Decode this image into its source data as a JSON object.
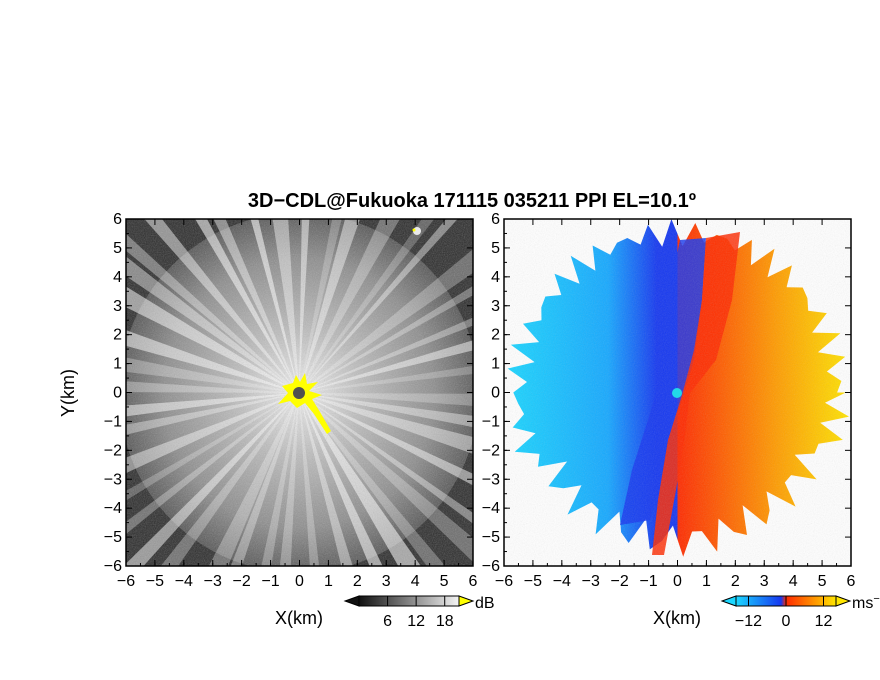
{
  "figure": {
    "title": "3D−CDL@Fukuoka 171115 035211 PPI EL=10.1º"
  },
  "chart_data": [
    {
      "type": "heatmap",
      "name": "reflectivity-ppi",
      "title": "",
      "xlabel": "X(km)",
      "ylabel": "Y(km)",
      "xlim": [
        -6,
        6
      ],
      "ylim": [
        -6,
        6
      ],
      "xticks": [
        "−6",
        "−5",
        "−4",
        "−3",
        "−2",
        "−1",
        "0",
        "1",
        "2",
        "3",
        "4",
        "5",
        "6"
      ],
      "yticks": [
        "−6",
        "−5",
        "−4",
        "−3",
        "−2",
        "−1",
        "0",
        "1",
        "2",
        "3",
        "4",
        "5",
        "6"
      ],
      "colormap": "grayscale",
      "colorbar": {
        "unit": "dB",
        "ticks": [
          6,
          12,
          18
        ],
        "ticklabels": [
          "6",
          "12",
          "18"
        ],
        "range": [
          0,
          21
        ]
      },
      "features": {
        "radar_center": [
          0,
          0
        ],
        "center_marker_color": "#505050",
        "near_center_high_echo_color": "#ffff00",
        "high_echo_tail_end": [
          1.2,
          -1.5
        ],
        "spokes_at_edge_value_db": 17,
        "background_value_db": 5,
        "isolated_echo_location": [
          4.1,
          5.5
        ]
      }
    },
    {
      "type": "heatmap",
      "name": "doppler-velocity-ppi",
      "title": "",
      "xlabel": "X(km)",
      "ylabel": "",
      "xlim": [
        -6,
        6
      ],
      "ylim": [
        -6,
        6
      ],
      "xticks": [
        "−6",
        "−5",
        "−4",
        "−3",
        "−2",
        "−1",
        "0",
        "1",
        "2",
        "3",
        "4",
        "5",
        "6"
      ],
      "yticks": [
        "−6",
        "−5",
        "−4",
        "−3",
        "−2",
        "−1",
        "0",
        "1",
        "2",
        "3",
        "4",
        "5",
        "6"
      ],
      "colormap": "diverging cyan-blue-red-yellow",
      "colorbar": {
        "unit": "ms",
        "unit_superscript": "−1",
        "ticks": [
          -12,
          0,
          12
        ],
        "ticklabels": [
          "−12",
          "0",
          "12"
        ],
        "range": [
          -16,
          16
        ]
      },
      "features": {
        "radar_center": [
          0,
          0
        ],
        "center_marker_color": "#22d7e8",
        "velocity_boundary_angle_deg_from_north": 12,
        "approx_velocity_west_side_ms": -12,
        "approx_velocity_east_side_ms": 12,
        "data_coverage_radius_km": 6
      }
    }
  ],
  "colors": {
    "cyan": "#1ad7ff",
    "blue": "#1638f0",
    "red": "#ff2a00",
    "orange": "#ff9a00",
    "yellow": "#ffe600"
  }
}
